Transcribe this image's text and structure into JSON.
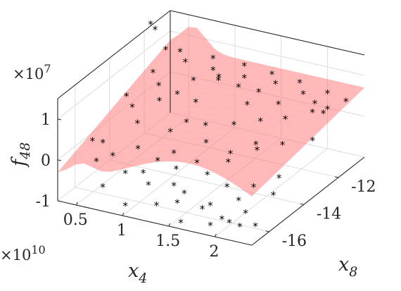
{
  "chart_data": {
    "type": "surface3d",
    "title": "",
    "xlabel": "x",
    "xlabel_sub": "4",
    "ylabel": "x",
    "ylabel_sub": "8",
    "zlabel": "f",
    "zlabel_sub": "48",
    "x_multiplier": "×10",
    "x_multiplier_exp": "10",
    "z_multiplier": "×10",
    "z_multiplier_exp": "7",
    "xlim": [
      0.3,
      2.4
    ],
    "ylim": [
      -17,
      -10.5
    ],
    "zlim": [
      -1,
      1.5
    ],
    "x_ticks": [
      0.5,
      1,
      1.5,
      2
    ],
    "x_tick_labels": [
      "0.5",
      "1",
      "1.5",
      "2"
    ],
    "y_ticks": [
      -16,
      -14,
      -12
    ],
    "y_tick_labels": [
      "-16",
      "-14",
      "-12"
    ],
    "z_ticks": [
      -1,
      0,
      1
    ],
    "z_tick_labels": [
      "-1",
      "0",
      "1"
    ],
    "grid": true,
    "surface_color": "#ff8080",
    "surface_opacity": 0.55,
    "marker": "*",
    "marker_color": "#000000",
    "points": [
      [
        0.45,
        -12.4,
        1.9
      ],
      [
        0.48,
        -12.3,
        1.75
      ],
      [
        0.4,
        -15.5,
        0.05
      ],
      [
        0.42,
        -15.0,
        -0.15
      ],
      [
        0.5,
        -15.8,
        -0.3
      ],
      [
        0.55,
        -14.0,
        0.45
      ],
      [
        0.62,
        -15.5,
        -0.2
      ],
      [
        0.7,
        -14.5,
        0.3
      ],
      [
        0.75,
        -13.5,
        0.55
      ],
      [
        0.8,
        -15.0,
        -0.1
      ],
      [
        0.85,
        -13.0,
        0.6
      ],
      [
        0.95,
        -15.5,
        -0.45
      ],
      [
        1.0,
        -14.2,
        0.15
      ],
      [
        1.05,
        -13.0,
        0.5
      ],
      [
        1.1,
        -16.0,
        -0.5
      ],
      [
        1.15,
        -14.8,
        -0.1
      ],
      [
        1.2,
        -12.5,
        0.95
      ],
      [
        1.25,
        -13.5,
        0.2
      ],
      [
        1.3,
        -15.6,
        -0.55
      ],
      [
        1.35,
        -14.0,
        0.0
      ],
      [
        1.4,
        -12.4,
        0.85
      ],
      [
        1.45,
        -16.2,
        -0.7
      ],
      [
        1.5,
        -13.2,
        0.25
      ],
      [
        1.55,
        -15.0,
        -0.35
      ],
      [
        1.6,
        -12.3,
        0.8
      ],
      [
        1.65,
        -14.2,
        -0.05
      ],
      [
        1.7,
        -16.1,
        -0.75
      ],
      [
        1.75,
        -13.0,
        0.4
      ],
      [
        1.8,
        -15.2,
        -0.45
      ],
      [
        1.85,
        -12.5,
        0.7
      ],
      [
        1.9,
        -14.0,
        0.1
      ],
      [
        1.95,
        -16.3,
        -0.8
      ],
      [
        2.0,
        -12.9,
        0.55
      ],
      [
        2.05,
        -15.0,
        -0.4
      ],
      [
        2.1,
        -13.6,
        0.2
      ],
      [
        2.15,
        -16.0,
        -0.65
      ],
      [
        2.2,
        -12.4,
        0.65
      ],
      [
        2.25,
        -14.6,
        -0.2
      ],
      [
        0.6,
        -11.5,
        1.0
      ],
      [
        0.9,
        -11.2,
        0.9
      ],
      [
        1.2,
        -11.0,
        0.8
      ],
      [
        1.5,
        -11.0,
        0.75
      ],
      [
        1.8,
        -11.0,
        0.7
      ],
      [
        2.1,
        -11.0,
        0.6
      ],
      [
        2.3,
        -11.0,
        0.5
      ],
      [
        0.7,
        -16.5,
        -0.6
      ],
      [
        1.0,
        -16.8,
        -0.8
      ],
      [
        1.3,
        -16.6,
        -0.7
      ],
      [
        1.6,
        -16.8,
        -0.9
      ],
      [
        1.9,
        -16.7,
        -0.85
      ],
      [
        2.2,
        -16.6,
        -0.75
      ],
      [
        2.35,
        -16.5,
        -0.7
      ],
      [
        0.55,
        -12.8,
        0.9
      ],
      [
        0.75,
        -12.0,
        1.0
      ],
      [
        1.05,
        -12.0,
        0.95
      ],
      [
        1.35,
        -11.8,
        0.85
      ],
      [
        1.65,
        -11.6,
        0.8
      ],
      [
        1.95,
        -11.6,
        0.7
      ],
      [
        2.25,
        -11.8,
        0.55
      ],
      [
        0.45,
        -13.8,
        0.6
      ],
      [
        0.65,
        -13.0,
        0.7
      ],
      [
        1.1,
        -13.8,
        0.3
      ],
      [
        1.4,
        -14.8,
        -0.2
      ],
      [
        1.7,
        -14.6,
        -0.1
      ],
      [
        2.0,
        -15.6,
        -0.55
      ],
      [
        2.3,
        -15.2,
        -0.4
      ],
      [
        0.85,
        -16.0,
        -0.35
      ],
      [
        1.25,
        -15.2,
        -0.3
      ],
      [
        1.55,
        -12.7,
        0.6
      ],
      [
        1.85,
        -13.8,
        0.15
      ],
      [
        2.15,
        -12.0,
        0.7
      ],
      [
        2.35,
        -13.2,
        0.3
      ],
      [
        1.45,
        -15.8,
        -0.6
      ],
      [
        1.75,
        -15.9,
        -0.7
      ],
      [
        2.05,
        -16.4,
        -0.8
      ],
      [
        1.05,
        -15.2,
        -0.2
      ],
      [
        0.95,
        -12.6,
        0.85
      ],
      [
        1.15,
        -12.2,
        0.9
      ],
      [
        0.5,
        -11.8,
        1.1
      ],
      [
        2.28,
        -12.2,
        0.6
      ]
    ]
  }
}
